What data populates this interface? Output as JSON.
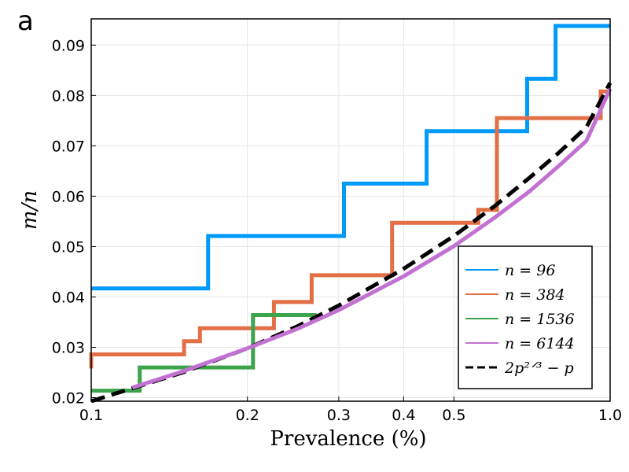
{
  "panel_label": "a",
  "chart_data": {
    "type": "line",
    "xscale": "log",
    "xlabel": "Prevalence (%)",
    "ylabel": "m/n",
    "xlim": [
      0.1,
      1.0
    ],
    "ylim": [
      0.0193,
      0.0952
    ],
    "grid": true,
    "legend_position": "bottom-right",
    "xticks": [
      {
        "value": 0.1,
        "label": "0.1"
      },
      {
        "value": 0.2,
        "label": "0.2"
      },
      {
        "value": 0.3,
        "label": "0.3"
      },
      {
        "value": 0.4,
        "label": "0.4"
      },
      {
        "value": 0.5,
        "label": "0.5"
      },
      {
        "value": 1.0,
        "label": "1.0"
      }
    ],
    "yticks": [
      {
        "value": 0.02,
        "label": "0.02"
      },
      {
        "value": 0.03,
        "label": "0.03"
      },
      {
        "value": 0.04,
        "label": "0.04"
      },
      {
        "value": 0.05,
        "label": "0.05"
      },
      {
        "value": 0.06,
        "label": "0.06"
      },
      {
        "value": 0.07,
        "label": "0.07"
      },
      {
        "value": 0.08,
        "label": "0.08"
      },
      {
        "value": 0.09,
        "label": "0.09"
      }
    ],
    "series": [
      {
        "name": "n = 96",
        "color": "#009af9",
        "style": "step",
        "x": [
          0.1,
          0.168,
          0.168,
          0.307,
          0.307,
          0.443,
          0.443,
          0.692,
          0.692,
          0.785,
          0.785,
          1.0
        ],
        "y": [
          0.0417,
          0.0417,
          0.0521,
          0.0521,
          0.0625,
          0.0625,
          0.0729,
          0.0729,
          0.0833,
          0.0833,
          0.0938,
          0.0938
        ]
      },
      {
        "name": "n = 384",
        "color": "#e26f46",
        "style": "step",
        "x": [
          0.1,
          0.1,
          0.1,
          0.151,
          0.151,
          0.162,
          0.162,
          0.225,
          0.225,
          0.266,
          0.266,
          0.38,
          0.38,
          0.557,
          0.557,
          0.605,
          0.605,
          0.959,
          0.959,
          1.0
        ],
        "y": [
          0.0258,
          0.0258,
          0.0286,
          0.0286,
          0.0312,
          0.0312,
          0.0338,
          0.0338,
          0.039,
          0.039,
          0.0443,
          0.0443,
          0.0547,
          0.0547,
          0.0573,
          0.0573,
          0.0755,
          0.0755,
          0.0808,
          0.0808
        ]
      },
      {
        "name": "n = 1536",
        "color": "#3da44d",
        "style": "step",
        "x": [
          0.1,
          0.124,
          0.124,
          0.205,
          0.205,
          0.272
        ],
        "y": [
          0.0214,
          0.0214,
          0.026,
          0.026,
          0.0364,
          0.0364
        ]
      },
      {
        "name": "n = 6144",
        "color": "#c271d2",
        "style": "curve",
        "x": [
          0.12,
          0.15,
          0.2,
          0.25,
          0.3,
          0.4,
          0.5,
          0.6,
          0.7,
          0.8,
          0.9,
          1.0
        ],
        "y": [
          0.022,
          0.0252,
          0.0298,
          0.0337,
          0.0374,
          0.0441,
          0.0501,
          0.0558,
          0.061,
          0.0662,
          0.071,
          0.0813
        ]
      },
      {
        "name": "2p^(2/3) − p",
        "color": "#000000",
        "style": "dashed",
        "x": [
          0.1,
          0.15,
          0.2,
          0.25,
          0.3,
          0.4,
          0.5,
          0.6,
          0.7,
          0.8,
          0.9,
          1.0
        ],
        "y": [
          0.0193,
          0.025,
          0.0298,
          0.0342,
          0.0383,
          0.0456,
          0.0521,
          0.0581,
          0.0637,
          0.0688,
          0.0737,
          0.0825
        ]
      }
    ],
    "legend": [
      {
        "label": "n = 96",
        "color": "#009af9",
        "style": "solid"
      },
      {
        "label": "n = 384",
        "color": "#e26f46",
        "style": "solid"
      },
      {
        "label": "n = 1536",
        "color": "#3da44d",
        "style": "solid"
      },
      {
        "label": "n = 6144",
        "color": "#c271d2",
        "style": "solid"
      },
      {
        "label": "2p²ᐟ³ − p",
        "color": "#000000",
        "style": "dashed"
      }
    ]
  }
}
